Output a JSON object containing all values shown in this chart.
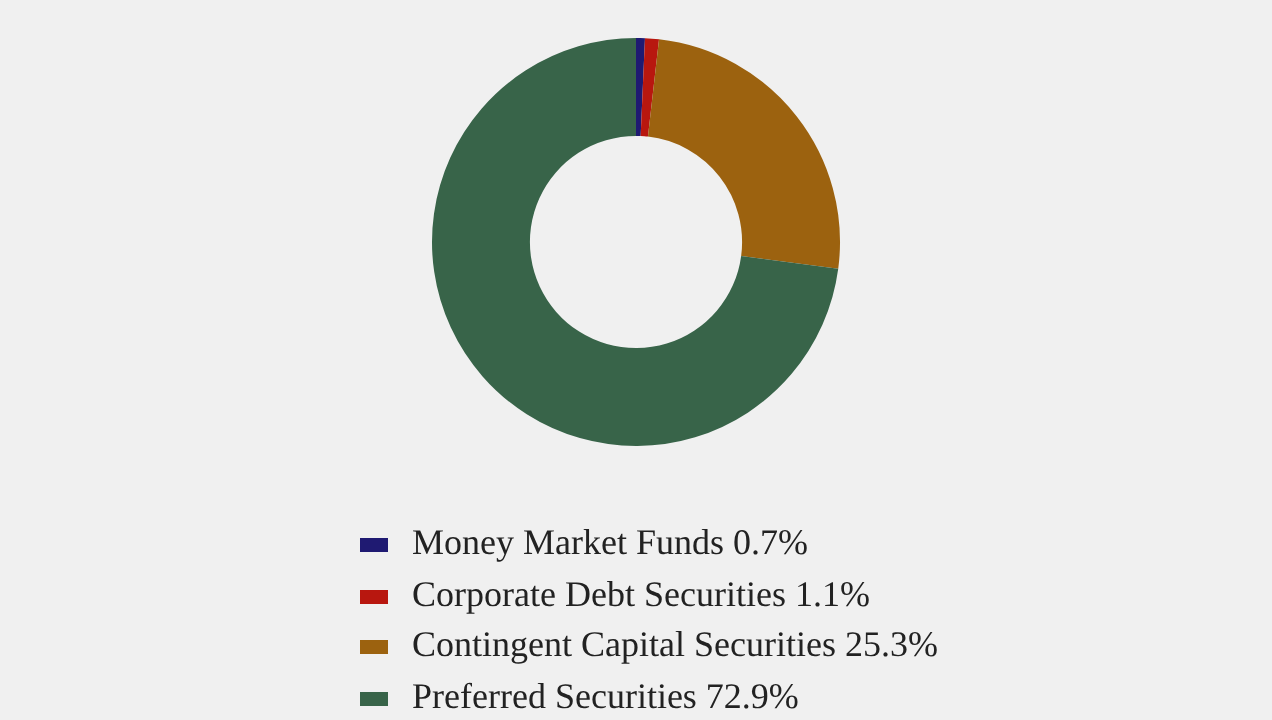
{
  "chart_data": {
    "type": "donut",
    "categories": [
      "Money Market Funds",
      "Corporate Debt Securities",
      "Contingent Capital Securities",
      "Preferred Securities"
    ],
    "values": [
      0.7,
      1.1,
      25.3,
      72.9
    ],
    "value_labels": [
      "0.7%",
      "1.1%",
      "25.3%",
      "72.9%"
    ],
    "colors": [
      "#1f1a72",
      "#b8170f",
      "#9c620f",
      "#386449"
    ],
    "legend": "bottom"
  }
}
